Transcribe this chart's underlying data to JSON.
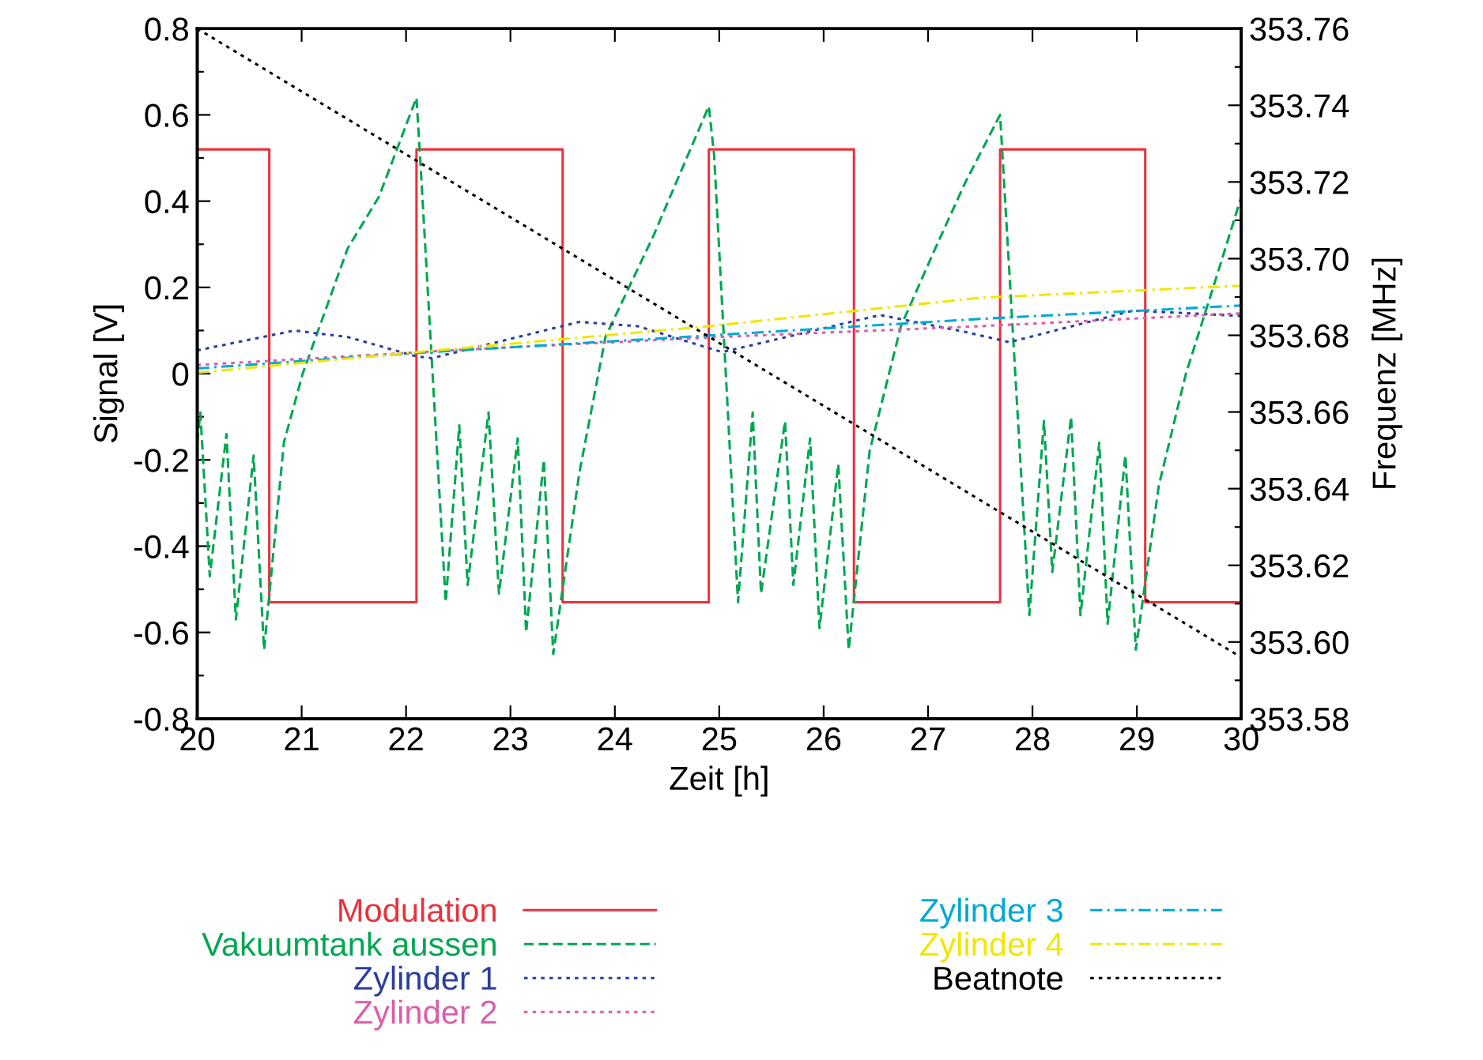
{
  "chart_data": {
    "type": "line",
    "xlabel": "Zeit [h]",
    "ylabel": "Signal [V]",
    "y2label": "Frequenz [MHz]",
    "xlim": [
      20,
      30
    ],
    "xticks": [
      20,
      21,
      22,
      23,
      24,
      25,
      26,
      27,
      28,
      29,
      30
    ],
    "ylim": [
      -0.8,
      0.8
    ],
    "yticks": [
      {
        "value": -0.8,
        "label": "-0.8"
      },
      {
        "value": -0.7,
        "label": null
      },
      {
        "value": -0.6,
        "label": "-0.6"
      },
      {
        "value": -0.5,
        "label": null
      },
      {
        "value": -0.4,
        "label": "-0.4"
      },
      {
        "value": -0.3,
        "label": null
      },
      {
        "value": -0.2,
        "label": "-0.2"
      },
      {
        "value": -0.1,
        "label": null
      },
      {
        "value": 0,
        "label": "0"
      },
      {
        "value": 0.1,
        "label": null
      },
      {
        "value": 0.2,
        "label": "0.2"
      },
      {
        "value": 0.3,
        "label": null
      },
      {
        "value": 0.4,
        "label": "0.4"
      },
      {
        "value": 0.5,
        "label": null
      },
      {
        "value": 0.6,
        "label": "0.6"
      },
      {
        "value": 0.7,
        "label": null
      },
      {
        "value": 0.8,
        "label": "0.8"
      }
    ],
    "y2lim": [
      353.58,
      353.76
    ],
    "y2ticks": [
      {
        "value": 353.58,
        "label": "353.58"
      },
      {
        "value": 353.59,
        "label": null
      },
      {
        "value": 353.6,
        "label": "353.60"
      },
      {
        "value": 353.61,
        "label": null
      },
      {
        "value": 353.62,
        "label": "353.62"
      },
      {
        "value": 353.63,
        "label": null
      },
      {
        "value": 353.64,
        "label": "353.64"
      },
      {
        "value": 353.65,
        "label": null
      },
      {
        "value": 353.66,
        "label": "353.66"
      },
      {
        "value": 353.67,
        "label": null
      },
      {
        "value": 353.68,
        "label": "353.68"
      },
      {
        "value": 353.69,
        "label": null
      },
      {
        "value": 353.7,
        "label": "353.70"
      },
      {
        "value": 353.71,
        "label": null
      },
      {
        "value": 353.72,
        "label": "353.72"
      },
      {
        "value": 353.73,
        "label": null
      },
      {
        "value": 353.74,
        "label": "353.74"
      },
      {
        "value": 353.75,
        "label": null
      },
      {
        "value": 353.76,
        "label": "353.76"
      }
    ],
    "grid": false,
    "legend": "bottom",
    "series": [
      {
        "name": "Modulation",
        "color": "#e8323c",
        "line_style": "solid",
        "x": [
          20,
          20.69,
          20.69,
          22.1,
          22.1,
          23.5,
          23.5,
          24.9,
          24.9,
          26.29,
          26.29,
          27.69,
          27.69,
          29.08,
          29.08,
          30
        ],
        "values": [
          0.52,
          0.52,
          -0.53,
          -0.53,
          0.52,
          0.52,
          -0.53,
          -0.53,
          0.52,
          0.52,
          -0.53,
          -0.53,
          0.52,
          0.52,
          -0.53,
          -0.53
        ]
      },
      {
        "name": "Vakuumtank aussen",
        "color": "#00a651",
        "line_style": "dashed",
        "x": [
          20.0,
          20.03,
          20.12,
          20.28,
          20.37,
          20.54,
          20.64,
          20.83,
          21.01,
          21.44,
          21.74,
          22.1,
          22.14,
          22.38,
          22.51,
          22.59,
          22.79,
          22.89,
          23.07,
          23.15,
          23.32,
          23.41,
          23.66,
          23.91,
          24.37,
          24.9,
          24.95,
          25.18,
          25.32,
          25.4,
          25.63,
          25.71,
          25.87,
          25.96,
          26.14,
          26.24,
          26.44,
          26.74,
          27.05,
          27.35,
          27.69,
          27.78,
          27.97,
          28.11,
          28.19,
          28.37,
          28.46,
          28.64,
          28.72,
          28.89,
          28.99,
          29.21,
          29.47,
          29.77,
          30.0
        ],
        "values": [
          -0.16,
          -0.09,
          -0.47,
          -0.14,
          -0.57,
          -0.19,
          -0.64,
          -0.16,
          0.0,
          0.29,
          0.41,
          0.64,
          0.48,
          -0.53,
          -0.12,
          -0.49,
          -0.09,
          -0.51,
          -0.15,
          -0.6,
          -0.2,
          -0.65,
          -0.23,
          0.085,
          0.32,
          0.62,
          0.51,
          -0.53,
          -0.09,
          -0.51,
          -0.11,
          -0.49,
          -0.15,
          -0.59,
          -0.21,
          -0.64,
          -0.18,
          0.11,
          0.28,
          0.44,
          0.6,
          0.23,
          -0.56,
          -0.11,
          -0.46,
          -0.1,
          -0.56,
          -0.16,
          -0.58,
          -0.19,
          -0.64,
          -0.26,
          0.0,
          0.23,
          0.41
        ]
      },
      {
        "name": "Zylinder 1",
        "color": "#2b3e9c",
        "line_style": "dotted",
        "x": [
          20,
          20.93,
          21.44,
          22.1,
          22.25,
          23.66,
          24.22,
          24.97,
          25.03,
          26.54,
          27.35,
          27.78,
          28.96,
          30
        ],
        "values": [
          0.054,
          0.1,
          0.085,
          0.04,
          0.036,
          0.12,
          0.11,
          0.054,
          0.05,
          0.136,
          0.097,
          0.073,
          0.146,
          0.134
        ]
      },
      {
        "name": "Zylinder 2",
        "color": "#d85fa8",
        "line_style": "dotted",
        "x": [
          20,
          22.5,
          25,
          27.5,
          30
        ],
        "values": [
          0.02,
          0.055,
          0.085,
          0.11,
          0.14
        ]
      },
      {
        "name": "Zylinder 3",
        "color": "#00a9d6",
        "line_style": "dashdot",
        "x": [
          20,
          22.1,
          25,
          27.5,
          30
        ],
        "values": [
          0.012,
          0.048,
          0.09,
          0.127,
          0.158
        ]
      },
      {
        "name": "Zylinder 4",
        "color": "#f2e600",
        "line_style": "dashdot",
        "x": [
          20,
          22.1,
          24.9,
          27.5,
          30
        ],
        "values": [
          0.002,
          0.05,
          0.11,
          0.176,
          0.204
        ]
      },
      {
        "name": "Beatnote",
        "color": "#000000",
        "line_style": "dotted",
        "axis": "y2",
        "x": [
          20,
          30
        ],
        "values": [
          353.76,
          353.596
        ]
      }
    ]
  }
}
